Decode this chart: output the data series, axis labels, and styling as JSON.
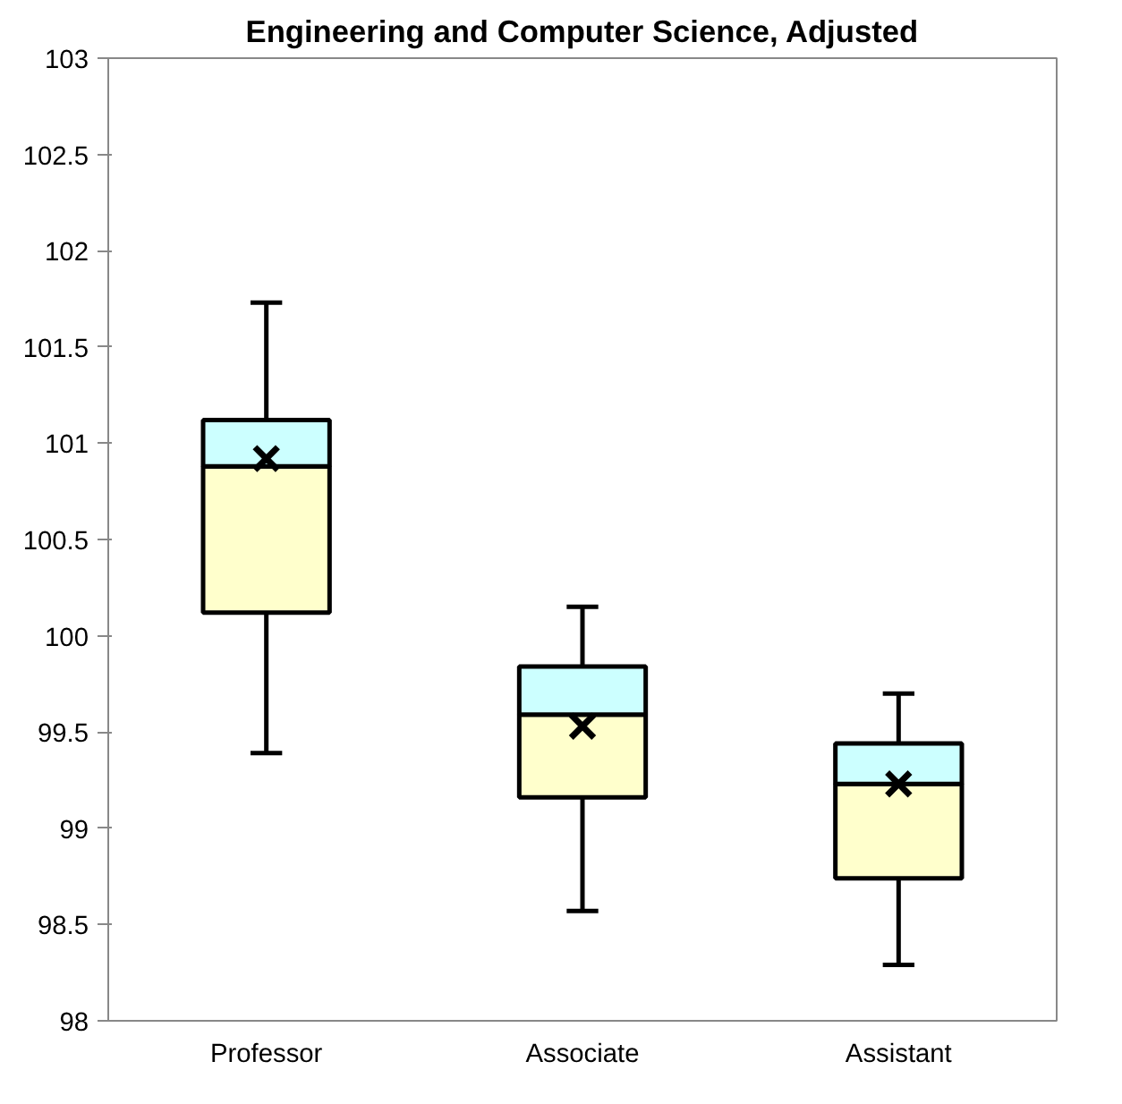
{
  "chart_data": {
    "type": "box",
    "title": "Engineering and Computer Science, Adjusted",
    "categories": [
      "Professor",
      "Associate",
      "Assistant"
    ],
    "boxes": [
      {
        "low": 99.39,
        "q1": 100.12,
        "median": 100.88,
        "q3": 101.12,
        "high": 101.73,
        "mean": 100.92
      },
      {
        "low": 98.57,
        "q1": 99.16,
        "median": 99.59,
        "q3": 99.84,
        "high": 100.15,
        "mean": 99.53
      },
      {
        "low": 98.29,
        "q1": 98.74,
        "median": 99.23,
        "q3": 99.44,
        "high": 99.7,
        "mean": 99.23
      }
    ],
    "colors": [
      [
        "#ffffcc",
        "#ccffff"
      ],
      [
        "#ffffcc",
        "#ccffff"
      ],
      [
        "#ffffcc",
        "#ccffff"
      ]
    ],
    "ylim": [
      98,
      103
    ],
    "yticks": [
      98,
      98.5,
      99,
      99.5,
      100,
      100.5,
      101,
      101.5,
      102,
      102.5,
      103
    ],
    "grid": false,
    "marker": "cross"
  }
}
